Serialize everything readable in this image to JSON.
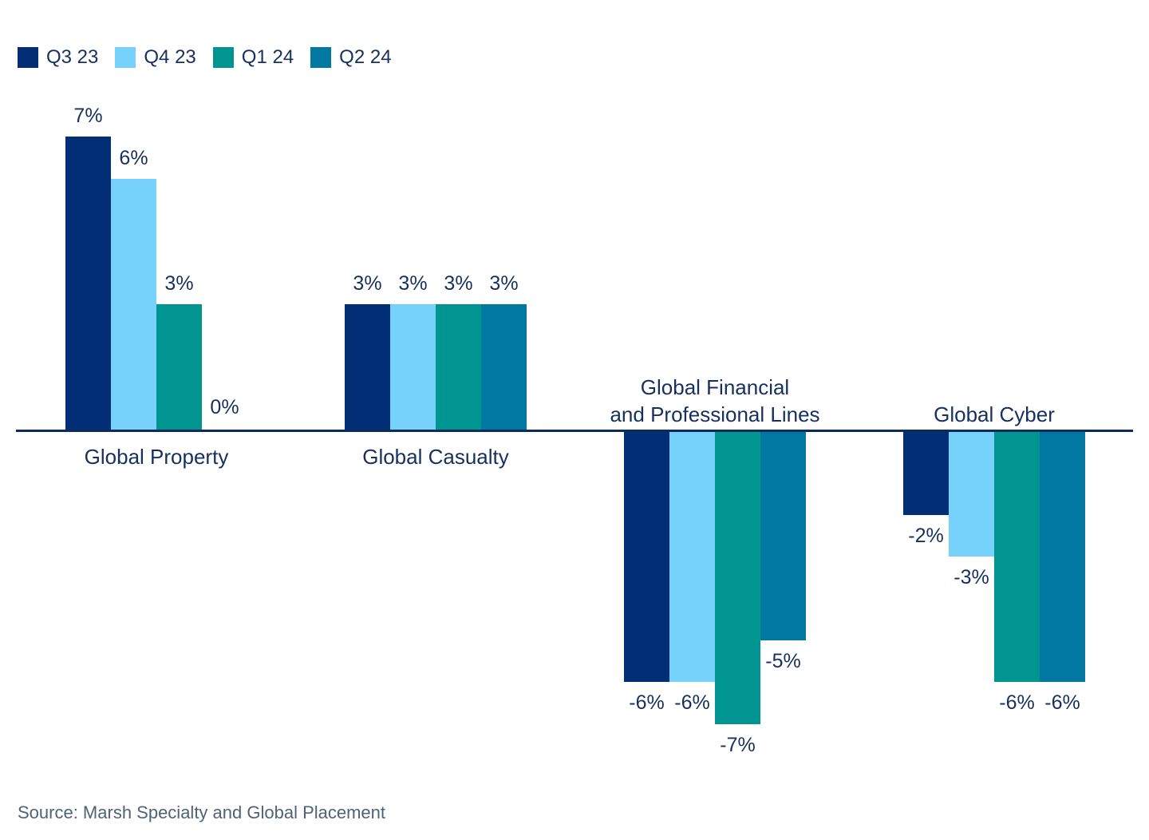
{
  "legend": {
    "items": [
      {
        "label": "Q3 23",
        "color": "#022E75"
      },
      {
        "label": "Q4 23",
        "color": "#76D2FB"
      },
      {
        "label": "Q1 24",
        "color": "#009590"
      },
      {
        "label": "Q2 24",
        "color": "#0078A2"
      }
    ]
  },
  "chart_data": {
    "type": "bar",
    "title": "",
    "categories": [
      {
        "name": "Global Property",
        "lines": [
          "Global Property"
        ]
      },
      {
        "name": "Global Casualty",
        "lines": [
          "Global Casualty"
        ]
      },
      {
        "name": "Global Financial and Professional Lines",
        "lines": [
          "Global Financial",
          "and Professional Lines"
        ]
      },
      {
        "name": "Global Cyber",
        "lines": [
          "Global Cyber"
        ]
      }
    ],
    "series": [
      {
        "name": "Q3 23",
        "color": "#022E75",
        "values": [
          7,
          3,
          -6,
          -2
        ],
        "labels": [
          "7%",
          "3%",
          "-6%",
          "-2%"
        ]
      },
      {
        "name": "Q4 23",
        "color": "#76D2FB",
        "values": [
          6,
          3,
          -6,
          -3
        ],
        "labels": [
          "6%",
          "3%",
          "-6%",
          "-3%"
        ]
      },
      {
        "name": "Q1 24",
        "color": "#009590",
        "values": [
          3,
          3,
          -7,
          -6
        ],
        "labels": [
          "3%",
          "3%",
          "-7%",
          "-6%"
        ]
      },
      {
        "name": "Q2 24",
        "color": "#0078A2",
        "values": [
          0,
          3,
          -5,
          -6
        ],
        "labels": [
          "0%",
          "3%",
          "-5%",
          "-6%"
        ]
      }
    ],
    "value_suffix": "%",
    "ylim": [
      -7,
      7
    ],
    "grid": false,
    "legend_position": "top-left",
    "baseline_value": 0
  },
  "colors": {
    "axis_line": "#0B2B58",
    "label_text": "#17305F",
    "source_text": "#4F6378",
    "background": "#FFFFFF"
  },
  "source": {
    "text": "Source: Marsh Specialty and Global Placement"
  }
}
